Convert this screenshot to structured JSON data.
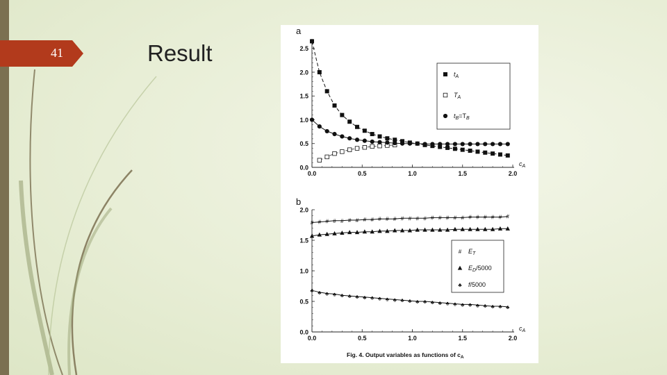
{
  "slide": {
    "number": "41",
    "title": "Result"
  },
  "colors": {
    "left_bar": "#7b7051",
    "badge": "#b23a1c",
    "background": "#e8eed6"
  },
  "figure": {
    "caption": "Fig. 4. Output variables as functions of c",
    "caption_sub": "A"
  },
  "chart_data": [
    {
      "panel_label": "a",
      "type": "line",
      "xlabel": "c",
      "xlabel_sub": "A",
      "xlim": [
        0,
        2.0
      ],
      "ylim": [
        0,
        2.7
      ],
      "xticks": [
        "0.0",
        "0.5",
        "1.0",
        "1.5",
        "2.0"
      ],
      "yticks": [
        "0.0",
        "0.5",
        "1.0",
        "1.5",
        "2.0",
        "2.5"
      ],
      "legend": {
        "placement": "top-right"
      },
      "series": [
        {
          "name": "t",
          "name_sub": "A",
          "marker": "filled-square",
          "line": "dashed",
          "x": [
            0.0,
            0.075,
            0.15,
            0.225,
            0.3,
            0.375,
            0.45,
            0.525,
            0.6,
            0.675,
            0.75,
            0.825,
            0.9,
            0.975,
            1.05,
            1.125,
            1.2,
            1.275,
            1.35,
            1.425,
            1.5,
            1.575,
            1.65,
            1.725,
            1.8,
            1.875,
            1.95
          ],
          "y": [
            2.65,
            2.0,
            1.6,
            1.3,
            1.1,
            0.96,
            0.85,
            0.77,
            0.7,
            0.65,
            0.61,
            0.58,
            0.55,
            0.52,
            0.5,
            0.47,
            0.45,
            0.43,
            0.41,
            0.39,
            0.37,
            0.35,
            0.33,
            0.31,
            0.29,
            0.27,
            0.25
          ]
        },
        {
          "name": "T",
          "name_sub": "A",
          "marker": "open-square",
          "line": "dashed",
          "x": [
            0.075,
            0.15,
            0.225,
            0.3,
            0.375,
            0.45,
            0.525,
            0.6,
            0.675,
            0.75,
            0.825
          ],
          "y": [
            0.15,
            0.22,
            0.29,
            0.33,
            0.37,
            0.4,
            0.42,
            0.44,
            0.45,
            0.46,
            0.47
          ]
        },
        {
          "name": "t",
          "name_sub": "B",
          "name_suffix": "=T",
          "name_suffix_sub": "B",
          "marker": "filled-circle",
          "line": "solid",
          "x": [
            0.0,
            0.075,
            0.15,
            0.225,
            0.3,
            0.375,
            0.45,
            0.525,
            0.6,
            0.675,
            0.75,
            0.825,
            0.9,
            0.975,
            1.05,
            1.125,
            1.2,
            1.275,
            1.35,
            1.425,
            1.5,
            1.575,
            1.65,
            1.725,
            1.8,
            1.875,
            1.95
          ],
          "y": [
            1.0,
            0.86,
            0.76,
            0.7,
            0.65,
            0.61,
            0.58,
            0.56,
            0.54,
            0.53,
            0.52,
            0.51,
            0.5,
            0.5,
            0.5,
            0.49,
            0.49,
            0.49,
            0.49,
            0.49,
            0.49,
            0.49,
            0.49,
            0.49,
            0.49,
            0.49,
            0.49
          ]
        }
      ]
    },
    {
      "panel_label": "b",
      "type": "line",
      "xlabel": "c",
      "xlabel_sub": "A",
      "xlim": [
        0,
        2.0
      ],
      "ylim": [
        0,
        2.0
      ],
      "xticks": [
        "0.0",
        "0.5",
        "1.0",
        "1.5",
        "2.0"
      ],
      "yticks": [
        "0.0",
        "0.5",
        "1.0",
        "1.5",
        "2.0"
      ],
      "legend": {
        "placement": "center-right"
      },
      "series": [
        {
          "name": "E",
          "name_sub": "T",
          "marker": "#",
          "line": "solid",
          "x": [
            0.0,
            0.075,
            0.15,
            0.225,
            0.3,
            0.375,
            0.45,
            0.525,
            0.6,
            0.675,
            0.75,
            0.825,
            0.9,
            0.975,
            1.05,
            1.125,
            1.2,
            1.275,
            1.35,
            1.425,
            1.5,
            1.575,
            1.65,
            1.725,
            1.8,
            1.875,
            1.95
          ],
          "y": [
            1.79,
            1.8,
            1.81,
            1.82,
            1.82,
            1.83,
            1.83,
            1.84,
            1.84,
            1.85,
            1.85,
            1.85,
            1.86,
            1.86,
            1.86,
            1.86,
            1.87,
            1.87,
            1.87,
            1.87,
            1.87,
            1.88,
            1.88,
            1.88,
            1.88,
            1.88,
            1.89
          ]
        },
        {
          "name": "E",
          "name_sub": "D",
          "name_suffix": "/5000",
          "marker": "filled-triangle",
          "line": "solid",
          "x": [
            0.0,
            0.075,
            0.15,
            0.225,
            0.3,
            0.375,
            0.45,
            0.525,
            0.6,
            0.675,
            0.75,
            0.825,
            0.9,
            0.975,
            1.05,
            1.125,
            1.2,
            1.275,
            1.35,
            1.425,
            1.5,
            1.575,
            1.65,
            1.725,
            1.8,
            1.875,
            1.95
          ],
          "y": [
            1.57,
            1.59,
            1.6,
            1.61,
            1.62,
            1.63,
            1.63,
            1.64,
            1.64,
            1.65,
            1.65,
            1.66,
            1.66,
            1.66,
            1.67,
            1.67,
            1.67,
            1.67,
            1.67,
            1.68,
            1.68,
            1.68,
            1.68,
            1.68,
            1.68,
            1.69,
            1.69
          ]
        },
        {
          "name": "f",
          "name_suffix": "/5000",
          "marker": "club",
          "line": "solid",
          "x": [
            0.0,
            0.075,
            0.15,
            0.225,
            0.3,
            0.375,
            0.45,
            0.525,
            0.6,
            0.675,
            0.75,
            0.825,
            0.9,
            0.975,
            1.05,
            1.125,
            1.2,
            1.275,
            1.35,
            1.425,
            1.5,
            1.575,
            1.65,
            1.725,
            1.8,
            1.875,
            1.95
          ],
          "y": [
            0.68,
            0.65,
            0.63,
            0.62,
            0.6,
            0.59,
            0.58,
            0.57,
            0.56,
            0.55,
            0.54,
            0.53,
            0.52,
            0.51,
            0.5,
            0.5,
            0.49,
            0.48,
            0.47,
            0.46,
            0.45,
            0.45,
            0.44,
            0.43,
            0.42,
            0.42,
            0.41
          ]
        }
      ]
    }
  ]
}
